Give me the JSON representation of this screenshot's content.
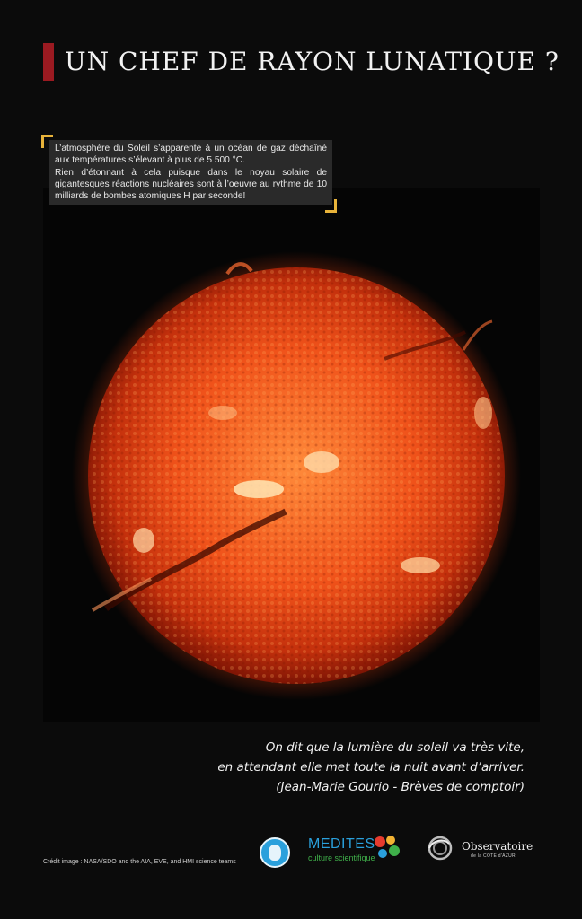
{
  "title": "UN CHEF DE RAYON LUNATIQUE ?",
  "callout": {
    "paragraph1": "L’atmosphère du Soleil s’apparente à un océan de gaz déchaîné aux températures s’élevant à plus de 5 500 °C.",
    "paragraph2": "Rien d’étonnant à cela puisque dans le noyau solaire de gigantesques réactions nucléaires sont à l’oeuvre au rythme de 10 milliards de bombes atomiques H par seconde!"
  },
  "quote": {
    "line1": "On dit que la lumière du soleil va très vite,",
    "line2": "en attendant elle met toute la nuit avant d’arriver.",
    "attribution": "(Jean-Marie Gourio - Brèves de comptoir)"
  },
  "credit": "Crédit image : NASA/SDO and the AIA, EVE, and HMI science teams",
  "logos": {
    "medites_name": "MEDITES",
    "medites_tagline": "culture scientifique",
    "observatoire_name": "Observatoire",
    "observatoire_sub": "de la CÔTE d'AZUR"
  },
  "colors": {
    "background": "#0b0b0b",
    "title_accent": "#9b1a21",
    "bracket_accent": "#e8b33a",
    "sun_core": "#ff7a2a",
    "sun_edge": "#a11a05"
  }
}
